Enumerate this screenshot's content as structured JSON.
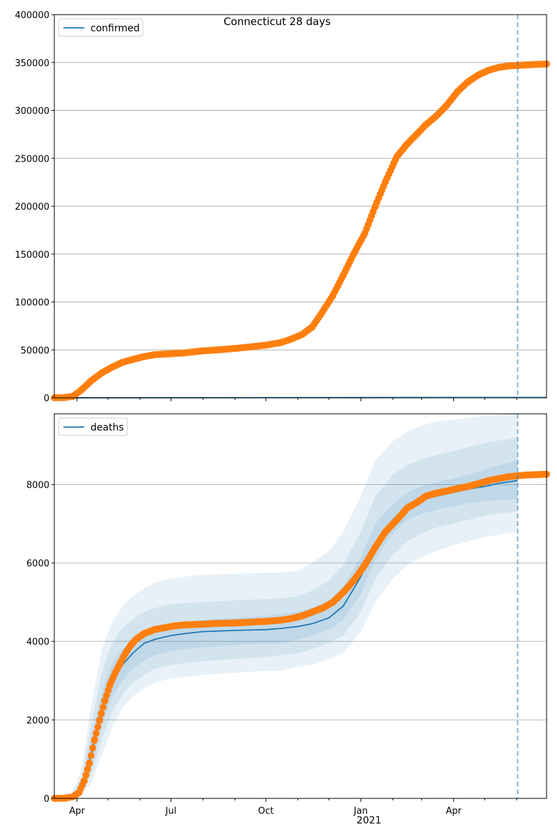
{
  "figure": {
    "title": "Connecticut 28 days"
  },
  "chart_data": [
    {
      "type": "line",
      "title": "Connecticut 28 days",
      "xlabel": "",
      "ylabel": "",
      "x_axis": {
        "type": "date",
        "range": [
          "2020-03-10",
          "2021-06-30"
        ],
        "tick_labels": [
          {
            "date": "2020-04-01",
            "label": "Apr"
          },
          {
            "date": "2020-07-01",
            "label": "Jul"
          },
          {
            "date": "2020-10-01",
            "label": "Oct"
          },
          {
            "date": "2021-01-01",
            "label": "Jan"
          },
          {
            "date": "2021-04-01",
            "label": "Apr"
          }
        ],
        "shown": false
      },
      "ylim": [
        0,
        400000
      ],
      "y_ticks": [
        0,
        50000,
        100000,
        150000,
        200000,
        250000,
        300000,
        350000,
        400000
      ],
      "grid": "y",
      "legend": {
        "placement": "top-left",
        "entries": [
          "confirmed"
        ]
      },
      "forecast_start": "2021-06-02",
      "series": [
        {
          "name": "confirmed",
          "kind": "line",
          "color": "#1f77b4",
          "x": [
            "2020-03-10",
            "2021-06-02",
            "2021-06-30"
          ],
          "y": [
            0,
            350,
            360
          ]
        },
        {
          "kind": "scatter",
          "color": "#ff7f0e",
          "x": [
            "2020-03-10",
            "2020-03-20",
            "2020-03-28",
            "2020-04-05",
            "2020-04-15",
            "2020-04-25",
            "2020-05-05",
            "2020-05-15",
            "2020-05-25",
            "2020-06-05",
            "2020-06-15",
            "2020-07-01",
            "2020-07-15",
            "2020-08-01",
            "2020-08-15",
            "2020-09-01",
            "2020-09-15",
            "2020-10-01",
            "2020-10-15",
            "2020-10-25",
            "2020-11-05",
            "2020-11-15",
            "2020-11-25",
            "2020-12-05",
            "2020-12-15",
            "2020-12-25",
            "2021-01-05",
            "2021-01-15",
            "2021-01-25",
            "2021-02-05",
            "2021-02-15",
            "2021-02-25",
            "2021-03-05",
            "2021-03-15",
            "2021-03-25",
            "2021-04-05",
            "2021-04-15",
            "2021-04-25",
            "2021-05-05",
            "2021-05-15",
            "2021-05-25",
            "2021-06-02",
            "2021-06-10",
            "2021-06-20",
            "2021-06-30"
          ],
          "y": [
            0,
            300,
            1500,
            8000,
            18000,
            26000,
            32000,
            37000,
            40000,
            43000,
            45000,
            46000,
            47000,
            49000,
            50000,
            51500,
            53000,
            55000,
            57500,
            61000,
            66000,
            74000,
            90000,
            107000,
            128000,
            150000,
            172000,
            200000,
            226000,
            252000,
            265000,
            276000,
            285000,
            294000,
            305000,
            320000,
            330000,
            337000,
            342000,
            345000,
            346500,
            347000,
            347500,
            348000,
            348500
          ]
        }
      ]
    },
    {
      "type": "line",
      "xlabel": "",
      "ylabel": "",
      "x_axis": {
        "type": "date",
        "range": [
          "2020-03-10",
          "2021-06-30"
        ],
        "tick_labels": [
          {
            "date": "2020-04-01",
            "label": "Apr"
          },
          {
            "date": "2020-07-01",
            "label": "Jul"
          },
          {
            "date": "2020-10-01",
            "label": "Oct"
          },
          {
            "date": "2021-01-01",
            "label": "Jan"
          },
          {
            "date": "2021-04-01",
            "label": "Apr"
          }
        ],
        "year_label": "2021"
      },
      "ylim": [
        0,
        9800
      ],
      "y_ticks": [
        0,
        2000,
        4000,
        6000,
        8000
      ],
      "grid": "y",
      "legend": {
        "placement": "top-left",
        "entries": [
          "deaths"
        ]
      },
      "forecast_start": "2021-06-02",
      "bands_color": "#1f77b4",
      "bands": {
        "x": [
          "2020-03-10",
          "2020-03-25",
          "2020-04-05",
          "2020-04-15",
          "2020-04-25",
          "2020-05-05",
          "2020-05-15",
          "2020-05-25",
          "2020-06-05",
          "2020-06-15",
          "2020-07-01",
          "2020-07-15",
          "2020-08-01",
          "2020-09-01",
          "2020-10-01",
          "2020-10-15",
          "2020-11-01",
          "2020-11-15",
          "2020-12-01",
          "2020-12-15",
          "2021-01-01",
          "2021-01-15",
          "2021-02-01",
          "2021-02-15",
          "2021-03-01",
          "2021-03-15",
          "2021-04-01",
          "2021-04-15",
          "2021-05-01",
          "2021-05-15",
          "2021-06-02"
        ],
        "lower_outer": [
          0,
          0,
          50,
          400,
          1100,
          1800,
          2300,
          2600,
          2800,
          2950,
          3050,
          3100,
          3150,
          3200,
          3250,
          3250,
          3350,
          3400,
          3550,
          3700,
          4250,
          5000,
          5600,
          5950,
          6150,
          6300,
          6450,
          6550,
          6650,
          6720,
          6800
        ],
        "lower_mid": [
          0,
          0,
          100,
          600,
          1500,
          2200,
          2650,
          2950,
          3150,
          3300,
          3400,
          3450,
          3500,
          3550,
          3600,
          3650,
          3700,
          3800,
          3950,
          4150,
          4750,
          5600,
          6200,
          6550,
          6750,
          6900,
          7000,
          7100,
          7200,
          7270,
          7300
        ],
        "lower_inner": [
          0,
          0,
          150,
          800,
          1900,
          2600,
          3000,
          3300,
          3500,
          3650,
          3750,
          3800,
          3850,
          3900,
          3950,
          3950,
          4050,
          4150,
          4300,
          4550,
          5200,
          6100,
          6750,
          7100,
          7250,
          7350,
          7450,
          7520,
          7570,
          7600,
          7630
        ],
        "upper_inner": [
          0,
          10,
          350,
          1500,
          2700,
          3450,
          3800,
          4050,
          4250,
          4350,
          4450,
          4500,
          4550,
          4600,
          4650,
          4700,
          4750,
          4850,
          5050,
          5400,
          6150,
          7000,
          7500,
          7800,
          7950,
          8050,
          8150,
          8250,
          8380,
          8490,
          8600
        ],
        "upper_mid": [
          0,
          20,
          500,
          1900,
          3200,
          3950,
          4350,
          4550,
          4750,
          4850,
          4950,
          4980,
          5000,
          5050,
          5080,
          5100,
          5150,
          5300,
          5550,
          5950,
          6800,
          7700,
          8250,
          8500,
          8650,
          8750,
          8850,
          8950,
          9050,
          9120,
          9200
        ],
        "upper_outer": [
          0,
          30,
          700,
          2400,
          3800,
          4500,
          4900,
          5150,
          5350,
          5500,
          5600,
          5650,
          5700,
          5720,
          5750,
          5750,
          5800,
          6000,
          6300,
          6800,
          7700,
          8600,
          9100,
          9350,
          9500,
          9600,
          9650,
          9700,
          9750,
          9780,
          9800
        ]
      },
      "series": [
        {
          "name": "deaths",
          "kind": "line",
          "color": "#1f77b4",
          "x": [
            "2020-03-10",
            "2020-03-25",
            "2020-04-05",
            "2020-04-15",
            "2020-04-25",
            "2020-05-05",
            "2020-05-15",
            "2020-05-25",
            "2020-06-05",
            "2020-06-15",
            "2020-07-01",
            "2020-07-15",
            "2020-08-01",
            "2020-09-01",
            "2020-10-01",
            "2020-10-15",
            "2020-11-01",
            "2020-11-15",
            "2020-12-01",
            "2020-12-15",
            "2021-01-01",
            "2021-01-15",
            "2021-02-01",
            "2021-02-15",
            "2021-03-01",
            "2021-03-15",
            "2021-04-01",
            "2021-04-15",
            "2021-05-01",
            "2021-05-15",
            "2021-06-02"
          ],
          "y": [
            0,
            5,
            250,
            1150,
            2300,
            3000,
            3400,
            3700,
            3950,
            4050,
            4150,
            4200,
            4250,
            4280,
            4300,
            4330,
            4380,
            4450,
            4600,
            4900,
            5650,
            6500,
            7100,
            7450,
            7600,
            7700,
            7800,
            7880,
            7950,
            8030,
            8100
          ]
        },
        {
          "kind": "scatter",
          "color": "#ff7f0e",
          "x": [
            "2020-03-10",
            "2020-03-20",
            "2020-03-28",
            "2020-04-03",
            "2020-04-08",
            "2020-04-13",
            "2020-04-18",
            "2020-04-23",
            "2020-04-28",
            "2020-05-03",
            "2020-05-08",
            "2020-05-13",
            "2020-05-18",
            "2020-05-23",
            "2020-05-28",
            "2020-06-05",
            "2020-06-15",
            "2020-06-25",
            "2020-07-05",
            "2020-07-15",
            "2020-08-01",
            "2020-08-15",
            "2020-09-01",
            "2020-09-15",
            "2020-10-01",
            "2020-10-15",
            "2020-10-25",
            "2020-11-05",
            "2020-11-15",
            "2020-11-25",
            "2020-12-05",
            "2020-12-15",
            "2020-12-25",
            "2021-01-05",
            "2021-01-15",
            "2021-01-25",
            "2021-02-05",
            "2021-02-15",
            "2021-02-25",
            "2021-03-05",
            "2021-03-15",
            "2021-03-25",
            "2021-04-05",
            "2021-04-15",
            "2021-04-25",
            "2021-05-05",
            "2021-05-15",
            "2021-05-25",
            "2021-06-02",
            "2021-06-10",
            "2021-06-20",
            "2021-06-30"
          ],
          "y": [
            0,
            5,
            40,
            150,
            450,
            900,
            1500,
            2000,
            2500,
            2900,
            3200,
            3450,
            3700,
            3900,
            4050,
            4200,
            4300,
            4350,
            4400,
            4420,
            4440,
            4460,
            4470,
            4490,
            4510,
            4540,
            4580,
            4650,
            4750,
            4850,
            5000,
            5250,
            5550,
            5950,
            6400,
            6800,
            7100,
            7400,
            7550,
            7700,
            7780,
            7830,
            7900,
            7950,
            8020,
            8100,
            8150,
            8200,
            8220,
            8240,
            8250,
            8260
          ]
        }
      ]
    }
  ]
}
